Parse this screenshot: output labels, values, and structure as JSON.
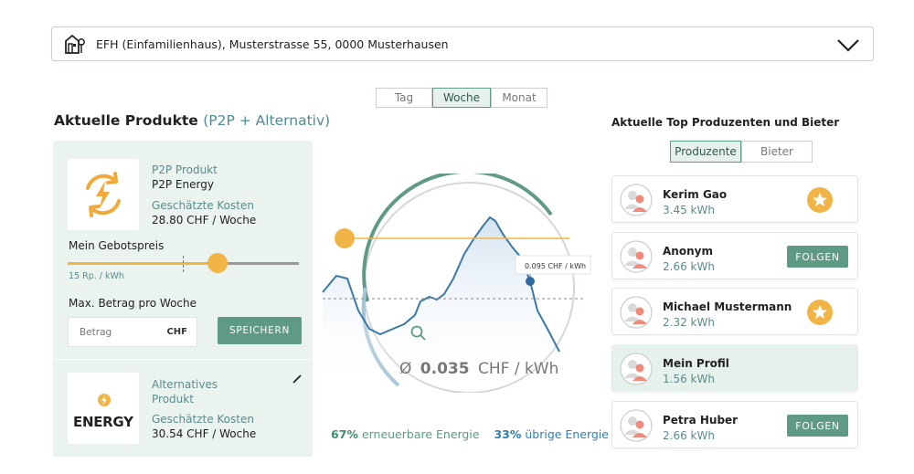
{
  "address": {
    "label": "EFH (Einfamilienhaus), Musterstrasse 55, 0000 Musterhausen",
    "icon": "house-icon"
  },
  "period_tabs": [
    {
      "label": "Tag",
      "active": false
    },
    {
      "label": "Woche",
      "active": true
    },
    {
      "label": "Monat",
      "active": false
    }
  ],
  "section": {
    "title": "Aktuelle Produkte",
    "subtitle": "(P2P + Alternativ)"
  },
  "p2p_product": {
    "type": "P2P Produkt",
    "name": "P2P Energy",
    "cost_label": "Geschätzte Kosten",
    "cost_value": "28.80 CHF / Woche",
    "icon": "p2p-energy-icon"
  },
  "bid": {
    "label": "Mein Gebotspreis",
    "value_label": "15 Rp. / kWh",
    "slider_fraction": 0.66
  },
  "max_amount": {
    "label": "Max. Betrag pro Woche",
    "placeholder": "Betrag",
    "currency": "CHF",
    "save_label": "SPEICHERN"
  },
  "alt_product": {
    "type_line1": "Alternatives",
    "type_line2": "Produkt",
    "cost_label": "Geschätzte Kosten",
    "cost_value": "30.54 CHF / Woche",
    "logo_text": "ENERGY",
    "logo_accent": "GY"
  },
  "chart": {
    "tooltip": "0.095 CHF / kWh",
    "average_prefix": "Ø",
    "average_value": "0.035",
    "average_unit": "CHF / kWh",
    "renewable_pct": "67%",
    "renewable_label": "erneuerbare Energie",
    "other_pct": "33%",
    "other_label": "übrige Energie"
  },
  "producers": {
    "title": "Aktuelle Top Produzenten und Bieter",
    "tabs": [
      {
        "label": "Produzente",
        "active": true
      },
      {
        "label": "Bieter",
        "active": false
      }
    ],
    "list": [
      {
        "name": "Kerim Gao",
        "kwh": "3.45 kWh",
        "action": "star"
      },
      {
        "name": "Anonym",
        "kwh": "2.66 kWh",
        "action": "follow",
        "action_label": "FOLGEN"
      },
      {
        "name": "Michael Mustermann",
        "kwh": "2.32 kWh",
        "action": "star"
      },
      {
        "name": "Mein Profil",
        "kwh": "1.56 kWh",
        "action": "none"
      },
      {
        "name": "Petra Huber",
        "kwh": "2.66 kWh",
        "action": "follow",
        "action_label": "FOLGEN"
      }
    ]
  },
  "colors": {
    "accent_green": "#5f9a84",
    "panel_green": "#eaf3ee",
    "orange": "#f1b547",
    "blue": "#2f7fb4"
  }
}
